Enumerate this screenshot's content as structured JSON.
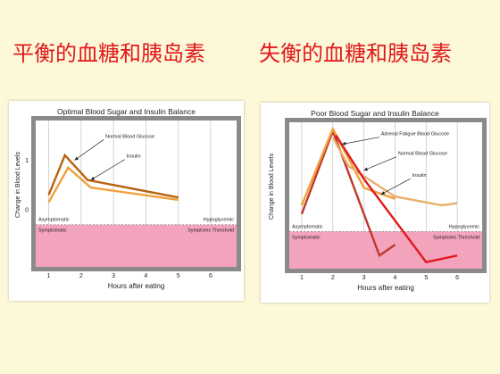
{
  "slide": {
    "title_left": "平衡的血糖和胰岛素",
    "title_right": "失衡的血糖和胰岛素"
  },
  "chart_data": [
    {
      "type": "line",
      "title": "Optimal Blood Sugar and Insulin Balance",
      "xlabel": "Hours after eating",
      "ylabel": "Change in Blood Levels",
      "x_ticks": [
        1,
        2,
        3,
        4,
        5,
        6
      ],
      "y_ticks": [
        1,
        0
      ],
      "xlim": [
        0.6,
        6.8
      ],
      "ylim": [
        -1.15,
        1.8
      ],
      "grid": true,
      "zones": {
        "upper_left": "Asymptomatic",
        "upper_right": "Hypoglycemic",
        "lower_left": "Symptomatic",
        "lower_right": "Symptoms Threshold",
        "threshold_y": -0.3
      },
      "series": [
        {
          "name": "Normal Blood Glucose",
          "color": "#b8620f",
          "x": [
            1.0,
            1.5,
            2.2,
            5.0
          ],
          "y": [
            0.3,
            1.1,
            0.6,
            0.25
          ]
        },
        {
          "name": "Insulin",
          "color": "#f0a03a",
          "x": [
            1.0,
            1.6,
            2.3,
            5.0
          ],
          "y": [
            0.15,
            0.85,
            0.45,
            0.2
          ]
        }
      ],
      "annotations": [
        {
          "text": "Normal Blood Glucose",
          "tx": 2.75,
          "ty": 1.45,
          "ax": 1.8,
          "ay": 1.0
        },
        {
          "text": "Insulin",
          "tx": 3.4,
          "ty": 1.05,
          "ax": 2.3,
          "ay": 0.6
        }
      ]
    },
    {
      "type": "line",
      "title": "Poor Blood Sugar and Insulin Balance",
      "xlabel": "Hours after eating",
      "ylabel": "Change in Blood Levels",
      "x_ticks": [
        1,
        2,
        3,
        4,
        5,
        6
      ],
      "y_ticks": [],
      "xlim": [
        0.6,
        6.8
      ],
      "ylim": [
        -1.15,
        2.2
      ],
      "grid": true,
      "zones": {
        "upper_left": "Asymptomatic",
        "upper_right": "Hypoglycemic",
        "lower_left": "Symptomatic",
        "lower_right": "Symptoms Threshold",
        "threshold_y": -0.3
      },
      "series": [
        {
          "name": "Adrenal Fatigue Blood Glucose",
          "color": "#c0392b",
          "x": [
            1.0,
            2.0,
            3.5,
            4.0
          ],
          "y": [
            0.1,
            2.0,
            -0.85,
            -0.6
          ]
        },
        {
          "name": "Normal Blood Glucose",
          "color": "#f0a03a",
          "x": [
            1.0,
            2.0,
            3.0,
            4.0
          ],
          "y": [
            0.3,
            2.05,
            0.7,
            0.45
          ]
        },
        {
          "name": "Insulin",
          "color": "#e8b06a",
          "x": [
            2.0,
            2.5,
            4.0,
            5.5,
            6.0
          ],
          "y": [
            1.85,
            1.2,
            0.5,
            0.3,
            0.35
          ]
        },
        {
          "name": "",
          "color": "#e0181b",
          "x": [
            2.1,
            3.0,
            5.0,
            6.0
          ],
          "y": [
            1.9,
            0.9,
            -1.0,
            -0.85
          ]
        }
      ],
      "annotations": [
        {
          "text": "Adrenal Fatigue Blood Glucose",
          "tx": 3.55,
          "ty": 1.9,
          "ax": 2.3,
          "ay": 1.7
        },
        {
          "text": "Normal Blood Glucose",
          "tx": 4.1,
          "ty": 1.45,
          "ax": 3.0,
          "ay": 1.1
        },
        {
          "text": "Insulin",
          "tx": 4.55,
          "ty": 0.95,
          "ax": 3.55,
          "ay": 0.55
        }
      ]
    }
  ]
}
